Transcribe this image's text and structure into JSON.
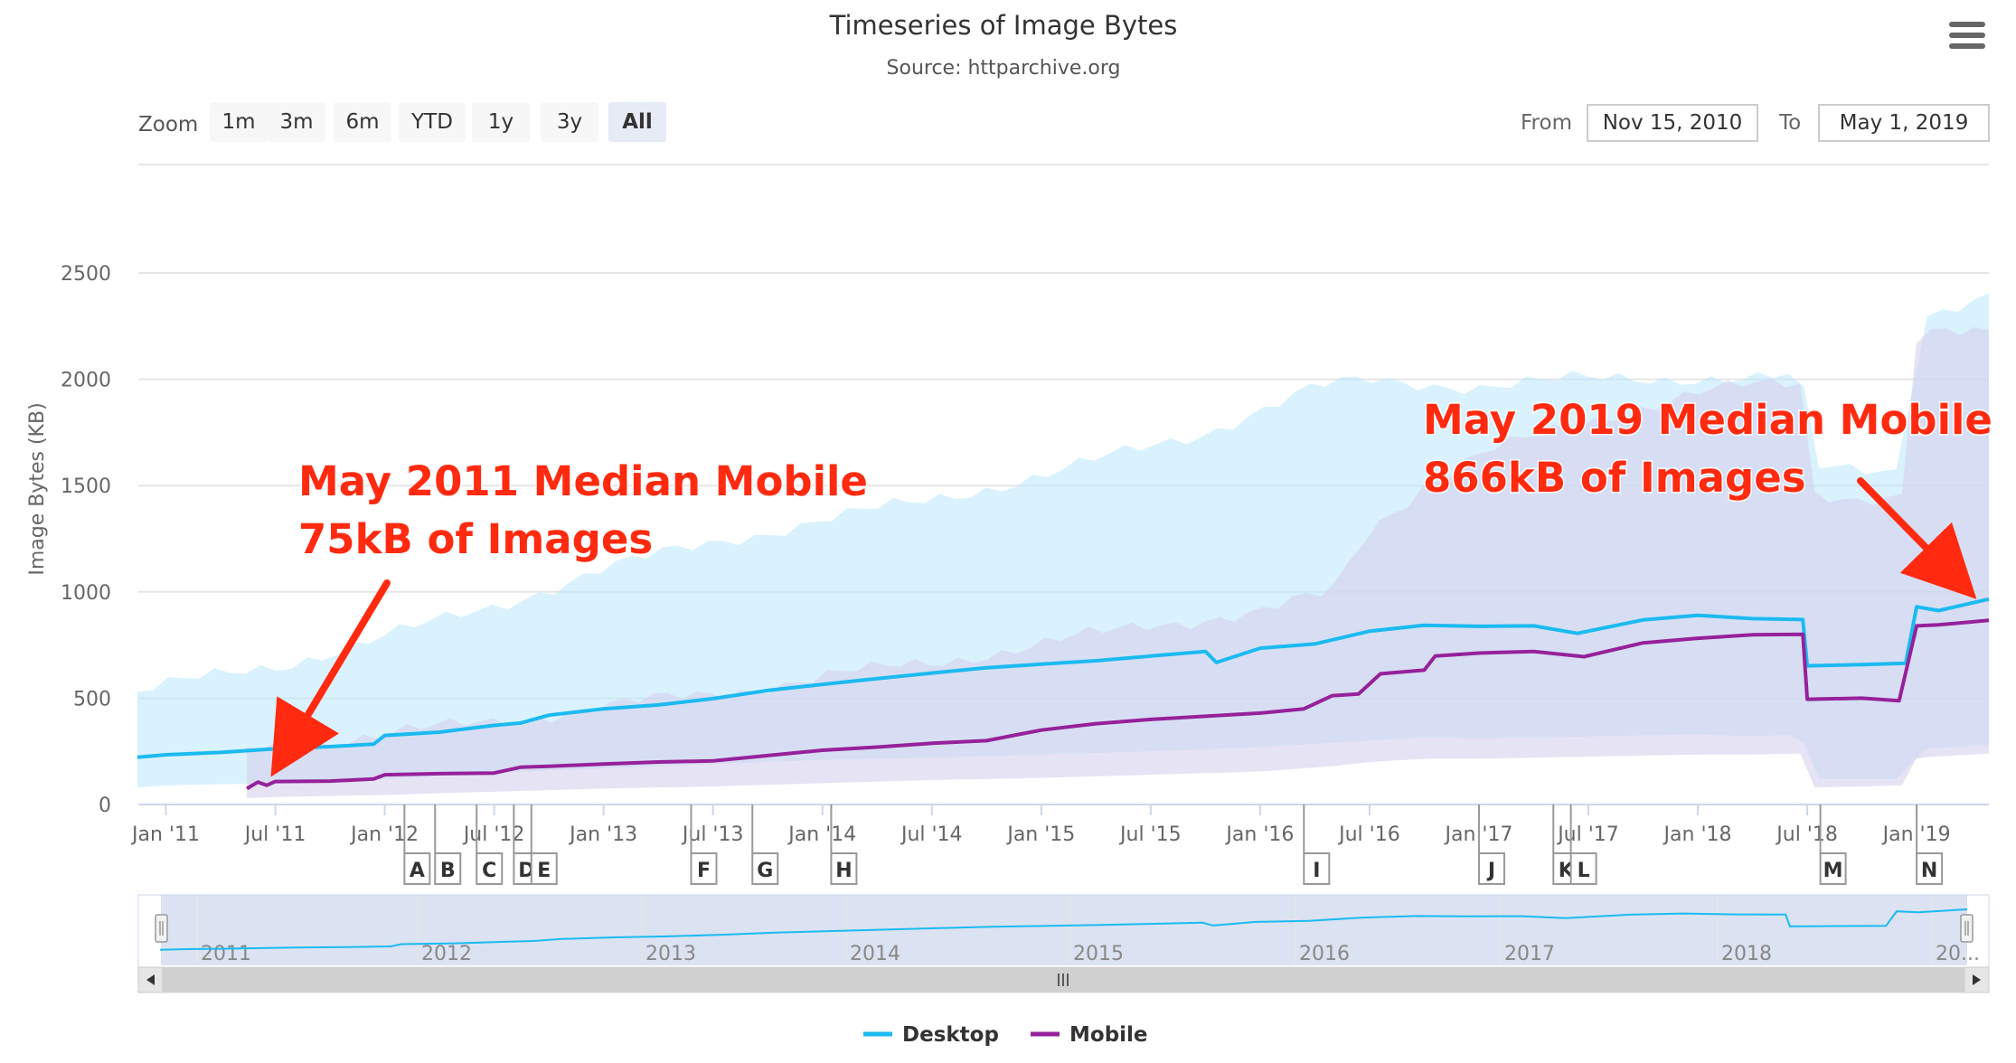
{
  "header": {
    "title": "Timeseries of Image Bytes",
    "subtitle": "Source: httparchive.org"
  },
  "toolbar": {
    "zoom_label": "Zoom",
    "zoom_buttons": [
      "1m",
      "3m",
      "6m",
      "YTD",
      "1y",
      "3y",
      "All"
    ],
    "active_zoom": "All",
    "from_label": "From",
    "from_value": "Nov 15, 2010",
    "to_label": "To",
    "to_value": "May 1, 2019"
  },
  "menu": {
    "icon": "hamburger-menu-icon"
  },
  "legend": {
    "items": [
      {
        "label": "Desktop",
        "color": "#1bbaf0"
      },
      {
        "label": "Mobile",
        "color": "#96219a"
      }
    ]
  },
  "annotations": [
    {
      "line1": "May 2011 Median Mobile",
      "line2": "75kB of Images",
      "color": "#ff2a10"
    },
    {
      "line1": "May 2019 Median Mobile",
      "line2": "866kB of Images",
      "color": "#ff2a10"
    }
  ],
  "flags": [
    {
      "label": "A",
      "date": 2012.09
    },
    {
      "label": "B",
      "date": 2012.23
    },
    {
      "label": "C",
      "date": 2012.42
    },
    {
      "label": "D",
      "date": 2012.59
    },
    {
      "label": "E",
      "date": 2012.67
    },
    {
      "label": "F",
      "date": 2013.4
    },
    {
      "label": "G",
      "date": 2013.68
    },
    {
      "label": "H",
      "date": 2014.04
    },
    {
      "label": "I",
      "date": 2016.2
    },
    {
      "label": "J",
      "date": 2017.0
    },
    {
      "label": "K",
      "date": 2017.34
    },
    {
      "label": "L",
      "date": 2017.42
    },
    {
      "label": "M",
      "date": 2018.56
    },
    {
      "label": "N",
      "date": 2019.0
    }
  ],
  "navigator": {
    "years": [
      "2011",
      "2012",
      "2013",
      "2014",
      "2015",
      "2016",
      "2017",
      "2018",
      "20..."
    ]
  },
  "chart_data": {
    "type": "line",
    "title": "Timeseries of Image Bytes",
    "subtitle": "Source: httparchive.org",
    "ylabel": "Image Bytes (KB)",
    "xlabel": "",
    "ylim": [
      0,
      2500
    ],
    "yticks": [
      0,
      500,
      1000,
      1500,
      2000,
      2500
    ],
    "xlim": [
      2010.874,
      2019.33
    ],
    "xticks": [
      {
        "label": "Jan '11",
        "date": 2011.0
      },
      {
        "label": "Jul '11",
        "date": 2011.5
      },
      {
        "label": "Jan '12",
        "date": 2012.0
      },
      {
        "label": "Jul '12",
        "date": 2012.5
      },
      {
        "label": "Jan '13",
        "date": 2013.0
      },
      {
        "label": "Jul '13",
        "date": 2013.5
      },
      {
        "label": "Jan '14",
        "date": 2014.0
      },
      {
        "label": "Jul '14",
        "date": 2014.5
      },
      {
        "label": "Jan '15",
        "date": 2015.0
      },
      {
        "label": "Jul '15",
        "date": 2015.5
      },
      {
        "label": "Jan '16",
        "date": 2016.0
      },
      {
        "label": "Jul '16",
        "date": 2016.5
      },
      {
        "label": "Jan '17",
        "date": 2017.0
      },
      {
        "label": "Jul '17",
        "date": 2017.5
      },
      {
        "label": "Jan '18",
        "date": 2018.0
      },
      {
        "label": "Jul '18",
        "date": 2018.5
      },
      {
        "label": "Jan '19",
        "date": 2019.0
      }
    ],
    "grid": true,
    "legend_position": "bottom",
    "series": [
      {
        "name": "Desktop",
        "color": "#1bbaf0",
        "x": [
          2010.87,
          2011.0,
          2011.25,
          2011.5,
          2011.75,
          2011.95,
          2012.0,
          2012.25,
          2012.5,
          2012.62,
          2012.75,
          2013.0,
          2013.25,
          2013.5,
          2013.75,
          2014.0,
          2014.25,
          2014.5,
          2014.75,
          2015.0,
          2015.25,
          2015.5,
          2015.75,
          2015.8,
          2016.0,
          2016.25,
          2016.5,
          2016.75,
          2017.0,
          2017.25,
          2017.45,
          2017.75,
          2018.0,
          2018.25,
          2018.48,
          2018.5,
          2018.75,
          2018.95,
          2019.0,
          2019.1,
          2019.33
        ],
        "y": [
          222,
          234,
          245,
          262,
          272,
          284,
          325,
          340,
          372,
          383,
          420,
          450,
          468,
          498,
          536,
          565,
          592,
          618,
          643,
          660,
          676,
          698,
          720,
          668,
          735,
          755,
          815,
          843,
          838,
          840,
          805,
          868,
          890,
          874,
          870,
          652,
          658,
          664,
          930,
          912,
          966
        ]
      },
      {
        "name": "Mobile",
        "color": "#96219a",
        "x": [
          2011.37,
          2011.42,
          2011.46,
          2011.5,
          2011.75,
          2011.95,
          2012.0,
          2012.25,
          2012.5,
          2012.62,
          2012.75,
          2013.0,
          2013.25,
          2013.5,
          2013.75,
          2014.0,
          2014.25,
          2014.5,
          2014.75,
          2015.0,
          2015.25,
          2015.5,
          2015.75,
          2016.0,
          2016.2,
          2016.33,
          2016.45,
          2016.55,
          2016.75,
          2016.8,
          2017.0,
          2017.25,
          2017.48,
          2017.75,
          2018.0,
          2018.25,
          2018.48,
          2018.5,
          2018.75,
          2018.92,
          2019.0,
          2019.1,
          2019.33
        ],
        "y": [
          75,
          105,
          90,
          108,
          110,
          120,
          140,
          145,
          148,
          175,
          180,
          190,
          200,
          205,
          230,
          255,
          270,
          288,
          300,
          350,
          380,
          400,
          415,
          430,
          450,
          512,
          520,
          615,
          632,
          698,
          712,
          720,
          695,
          760,
          782,
          798,
          800,
          495,
          500,
          488,
          840,
          845,
          866
        ]
      }
    ],
    "bands": [
      {
        "name": "Desktop range",
        "color": "#b9e8fb",
        "x": [
          2010.87,
          2011.0,
          2011.5,
          2012.0,
          2012.5,
          2013.0,
          2013.5,
          2014.0,
          2014.5,
          2015.0,
          2015.5,
          2015.75,
          2016.0,
          2016.25,
          2016.5,
          2016.75,
          2017.0,
          2017.5,
          2018.0,
          2018.25,
          2018.48,
          2018.5,
          2018.75,
          2018.95,
          2019.0,
          2019.33
        ],
        "low": [
          80,
          90,
          100,
          120,
          150,
          170,
          190,
          210,
          220,
          235,
          250,
          260,
          270,
          285,
          300,
          315,
          310,
          320,
          330,
          320,
          330,
          120,
          120,
          120,
          260,
          280
        ],
        "high": [
          530,
          560,
          650,
          790,
          930,
          1110,
          1230,
          1340,
          1430,
          1550,
          1680,
          1750,
          1860,
          1960,
          1990,
          1980,
          1970,
          2000,
          2010,
          2000,
          2010,
          1580,
          1580,
          1580,
          2300,
          2380
        ]
      },
      {
        "name": "Mobile range",
        "color": "#d6d0ef",
        "x": [
          2011.37,
          2011.5,
          2012.0,
          2012.5,
          2013.0,
          2013.5,
          2014.0,
          2014.5,
          2015.0,
          2015.5,
          2016.0,
          2016.33,
          2016.5,
          2016.75,
          2017.0,
          2017.5,
          2018.0,
          2018.25,
          2018.48,
          2018.5,
          2018.75,
          2018.95,
          2019.0,
          2019.33
        ],
        "low": [
          30,
          35,
          45,
          60,
          75,
          85,
          100,
          115,
          125,
          140,
          155,
          180,
          200,
          215,
          215,
          225,
          235,
          235,
          240,
          80,
          85,
          90,
          220,
          240
        ],
        "high": [
          260,
          270,
          330,
          390,
          460,
          520,
          600,
          670,
          750,
          850,
          900,
          1000,
          1300,
          1500,
          1640,
          1810,
          1930,
          1970,
          1990,
          1480,
          1440,
          1440,
          2200,
          2220
        ]
      }
    ]
  }
}
